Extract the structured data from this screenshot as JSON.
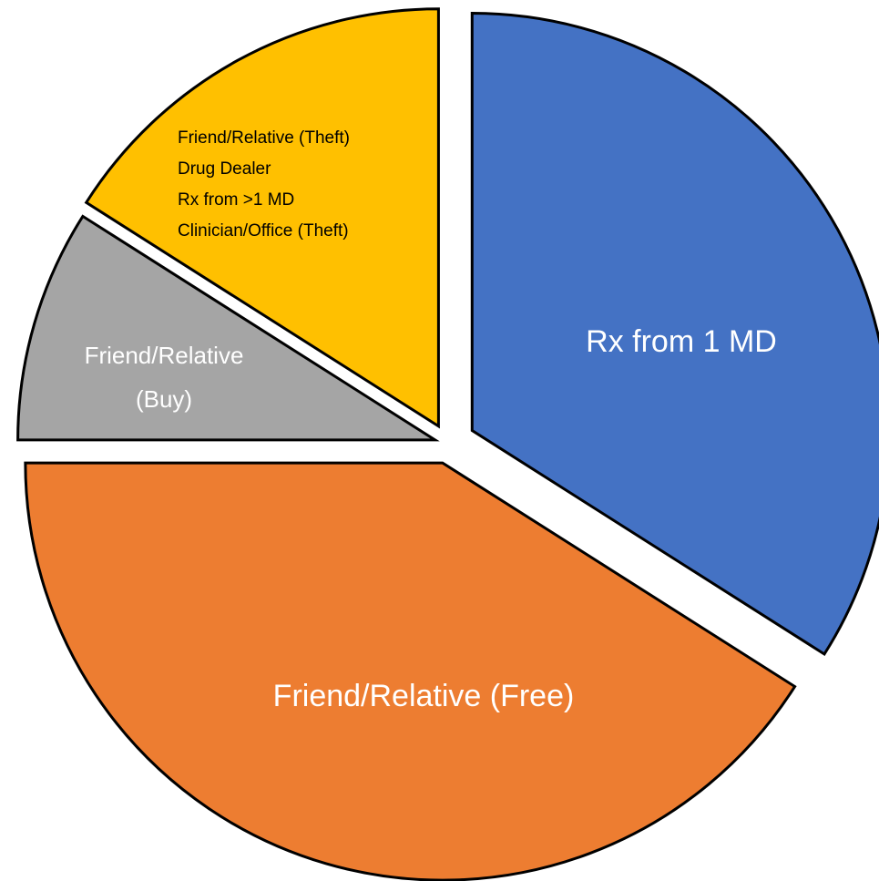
{
  "chart_data": {
    "type": "pie",
    "categories": [
      [
        "Rx from 1 MD"
      ],
      [
        "Friend/Relative (Free)"
      ],
      [
        "Friend/Relative",
        "(Buy)"
      ],
      [
        "Friend/Relative (Theft)",
        "Drug Dealer",
        "Rx from >1 MD",
        "Clinician/Office (Theft)"
      ]
    ],
    "values": [
      34,
      41,
      9,
      16
    ],
    "colors": [
      "#4472c4",
      "#ed7d31",
      "#a5a5a5",
      "#ffc000"
    ],
    "label_colors": [
      "#ffffff",
      "#ffffff",
      "#ffffff",
      "#000000"
    ]
  }
}
